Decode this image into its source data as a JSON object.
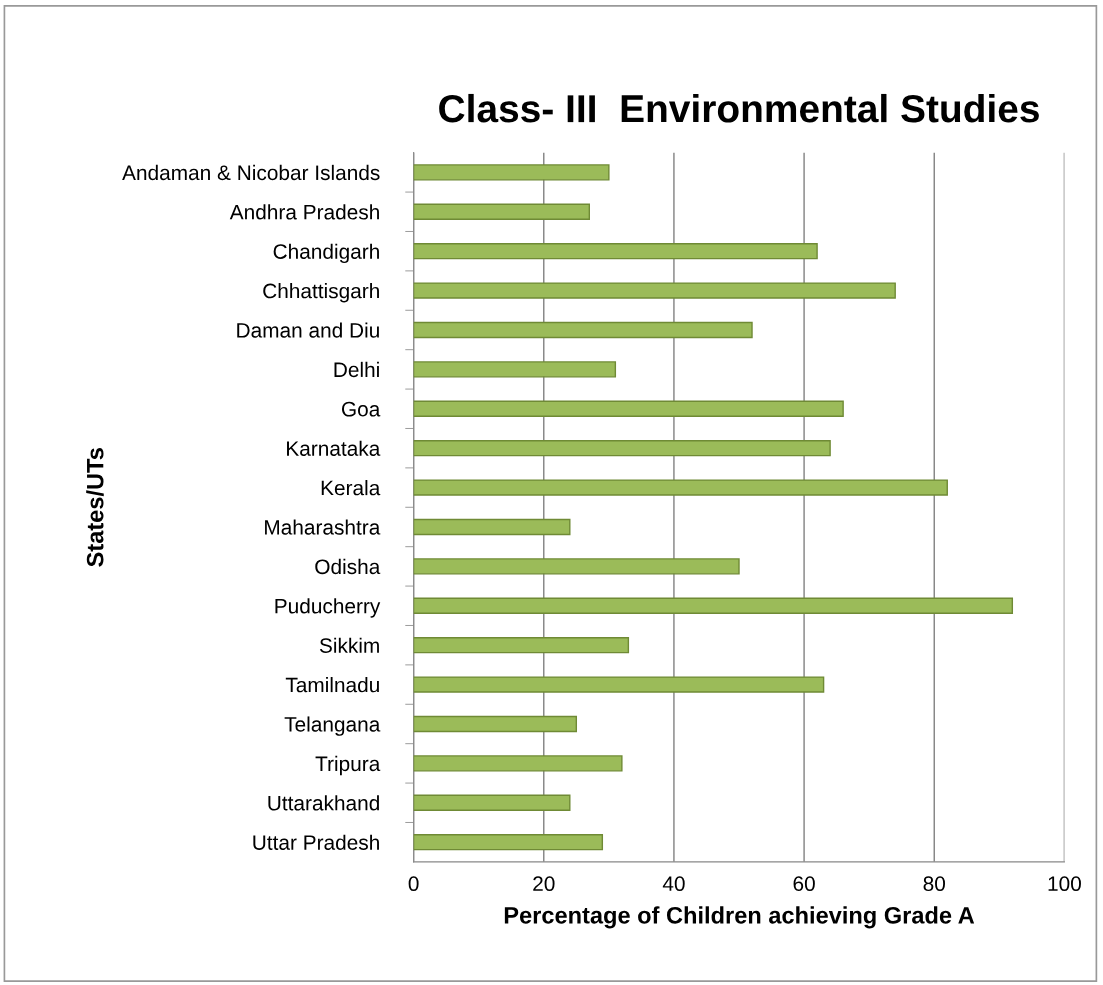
{
  "chart_data": {
    "type": "bar",
    "orientation": "horizontal",
    "title": "Class- III  Environmental Studies",
    "xlabel": "Percentage of Children achieving Grade A",
    "ylabel": "States/UTs",
    "categories": [
      "Andaman & Nicobar Islands",
      "Andhra Pradesh",
      "Chandigarh",
      "Chhattisgarh",
      "Daman and Diu",
      "Delhi",
      "Goa",
      "Karnataka",
      "Kerala",
      "Maharashtra",
      "Odisha",
      "Puducherry",
      "Sikkim",
      "Tamilnadu",
      "Telangana",
      "Tripura",
      "Uttarakhand",
      "Uttar Pradesh"
    ],
    "values": [
      30,
      27,
      62,
      74,
      52,
      31,
      66,
      64,
      82,
      24,
      50,
      92,
      33,
      63,
      25,
      32,
      24,
      29
    ],
    "color": "#9bbb59",
    "xlim": [
      0,
      100
    ],
    "xticks": [
      0,
      20,
      40,
      60,
      80,
      100
    ],
    "grid": "x"
  }
}
